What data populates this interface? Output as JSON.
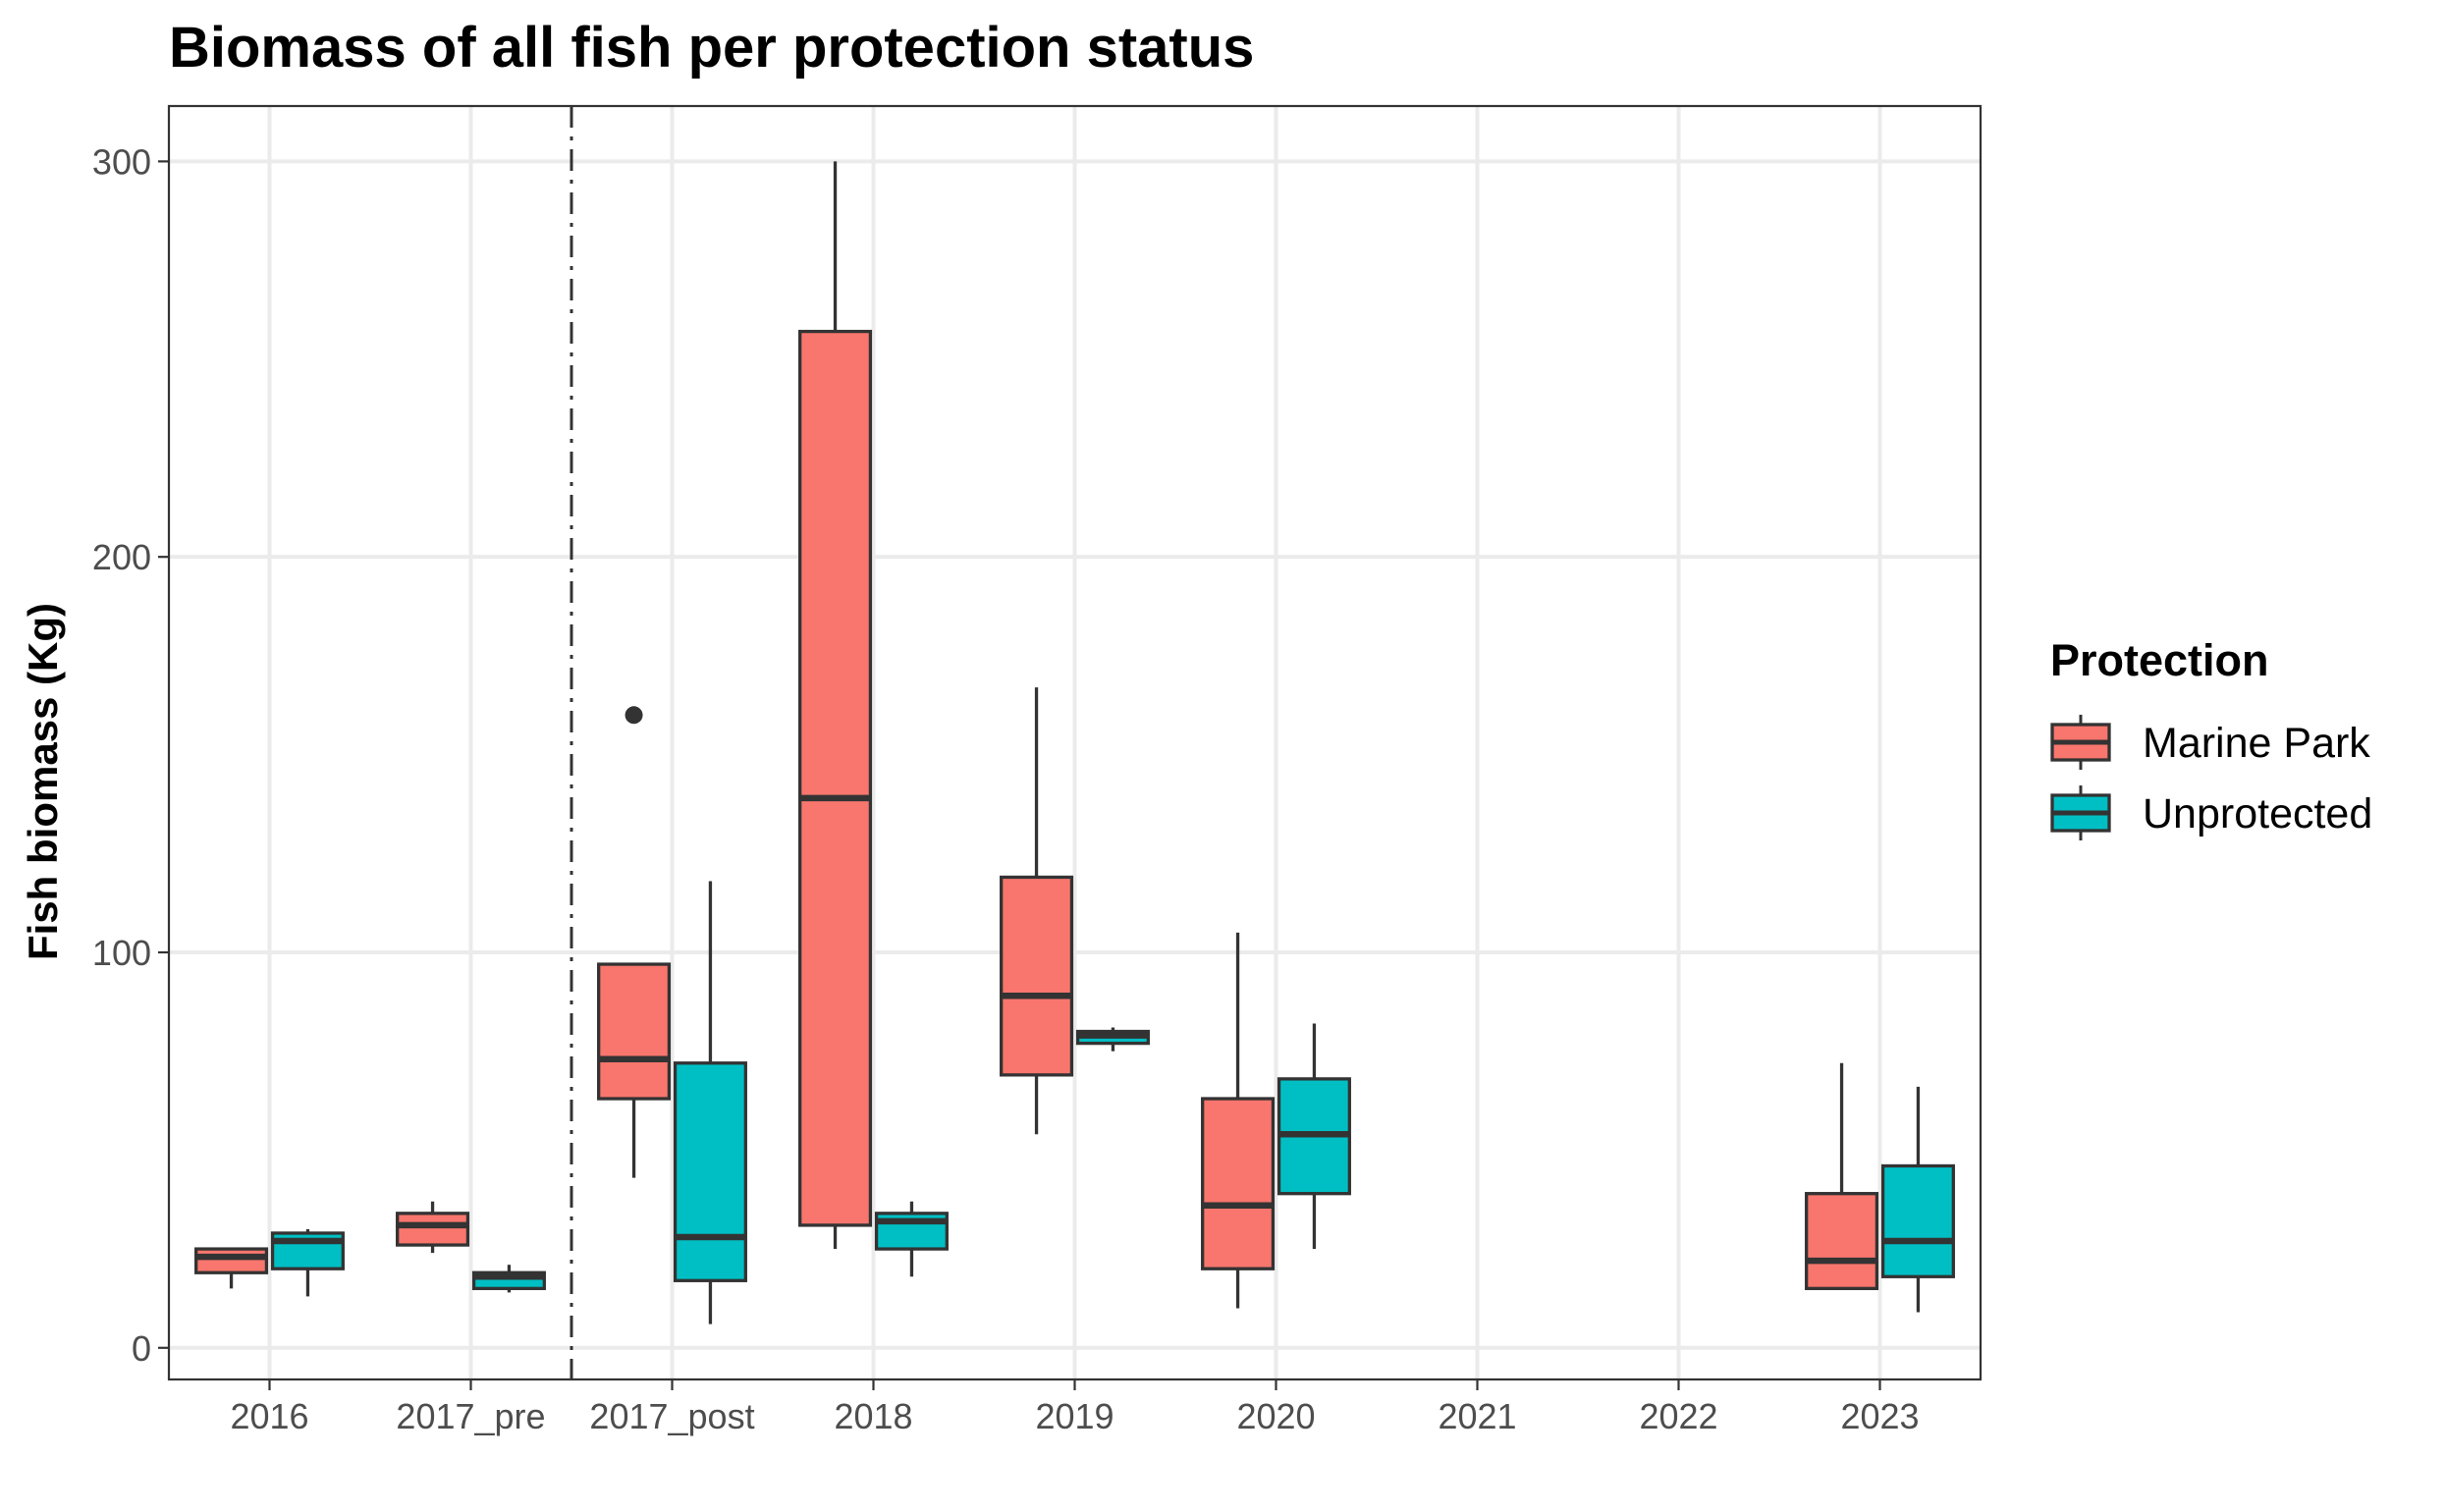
{
  "chart_data": {
    "type": "boxplot",
    "title": "Biomass of all fish per protection status",
    "xlabel": "",
    "ylabel": "Fish biomass (Kg)",
    "categories": [
      "2016",
      "2017_pre",
      "2017_post",
      "2018",
      "2019",
      "2020",
      "2021",
      "2022",
      "2023"
    ],
    "ylim": [
      -8,
      314
    ],
    "yticks": [
      0,
      100,
      200,
      300
    ],
    "grid": true,
    "reference_line": {
      "between": [
        "2017_pre",
        "2017_post"
      ],
      "style": "dashed"
    },
    "legend": {
      "title": "Protection",
      "position": "right"
    },
    "series": [
      {
        "name": "Marine Park",
        "color": "#F8766D",
        "boxes": [
          {
            "category": "2016",
            "min": 15,
            "q1": 19,
            "median": 23,
            "q3": 25,
            "max": 25,
            "outliers": []
          },
          {
            "category": "2017_pre",
            "min": 24,
            "q1": 26,
            "median": 31,
            "q3": 34,
            "max": 37,
            "outliers": []
          },
          {
            "category": "2017_post",
            "min": 43,
            "q1": 63,
            "median": 73,
            "q3": 97,
            "max": 97,
            "outliers": [
              160
            ]
          },
          {
            "category": "2018",
            "min": 25,
            "q1": 31,
            "median": 139,
            "q3": 257,
            "max": 300,
            "outliers": []
          },
          {
            "category": "2019",
            "min": 54,
            "q1": 69,
            "median": 89,
            "q3": 119,
            "max": 167,
            "outliers": []
          },
          {
            "category": "2020",
            "min": 10,
            "q1": 20,
            "median": 36,
            "q3": 63,
            "max": 105,
            "outliers": []
          },
          {
            "category": "2023",
            "min": 15,
            "q1": 15,
            "median": 22,
            "q3": 39,
            "max": 72,
            "outliers": []
          }
        ]
      },
      {
        "name": "Unprotected",
        "color": "#00BFC4",
        "boxes": [
          {
            "category": "2016",
            "min": 13,
            "q1": 20,
            "median": 27,
            "q3": 29,
            "max": 30,
            "outliers": []
          },
          {
            "category": "2017_pre",
            "min": 14,
            "q1": 15,
            "median": 18,
            "q3": 19,
            "max": 21,
            "outliers": []
          },
          {
            "category": "2017_post",
            "min": 6,
            "q1": 17,
            "median": 28,
            "q3": 72,
            "max": 118,
            "outliers": []
          },
          {
            "category": "2018",
            "min": 18,
            "q1": 25,
            "median": 32,
            "q3": 34,
            "max": 37,
            "outliers": []
          },
          {
            "category": "2019",
            "min": 75,
            "q1": 77,
            "median": 79,
            "q3": 80,
            "max": 81,
            "outliers": []
          },
          {
            "category": "2020",
            "min": 25,
            "q1": 39,
            "median": 54,
            "q3": 68,
            "max": 82,
            "outliers": []
          },
          {
            "category": "2023",
            "min": 9,
            "q1": 18,
            "median": 27,
            "q3": 46,
            "max": 66,
            "outliers": []
          }
        ]
      }
    ]
  }
}
